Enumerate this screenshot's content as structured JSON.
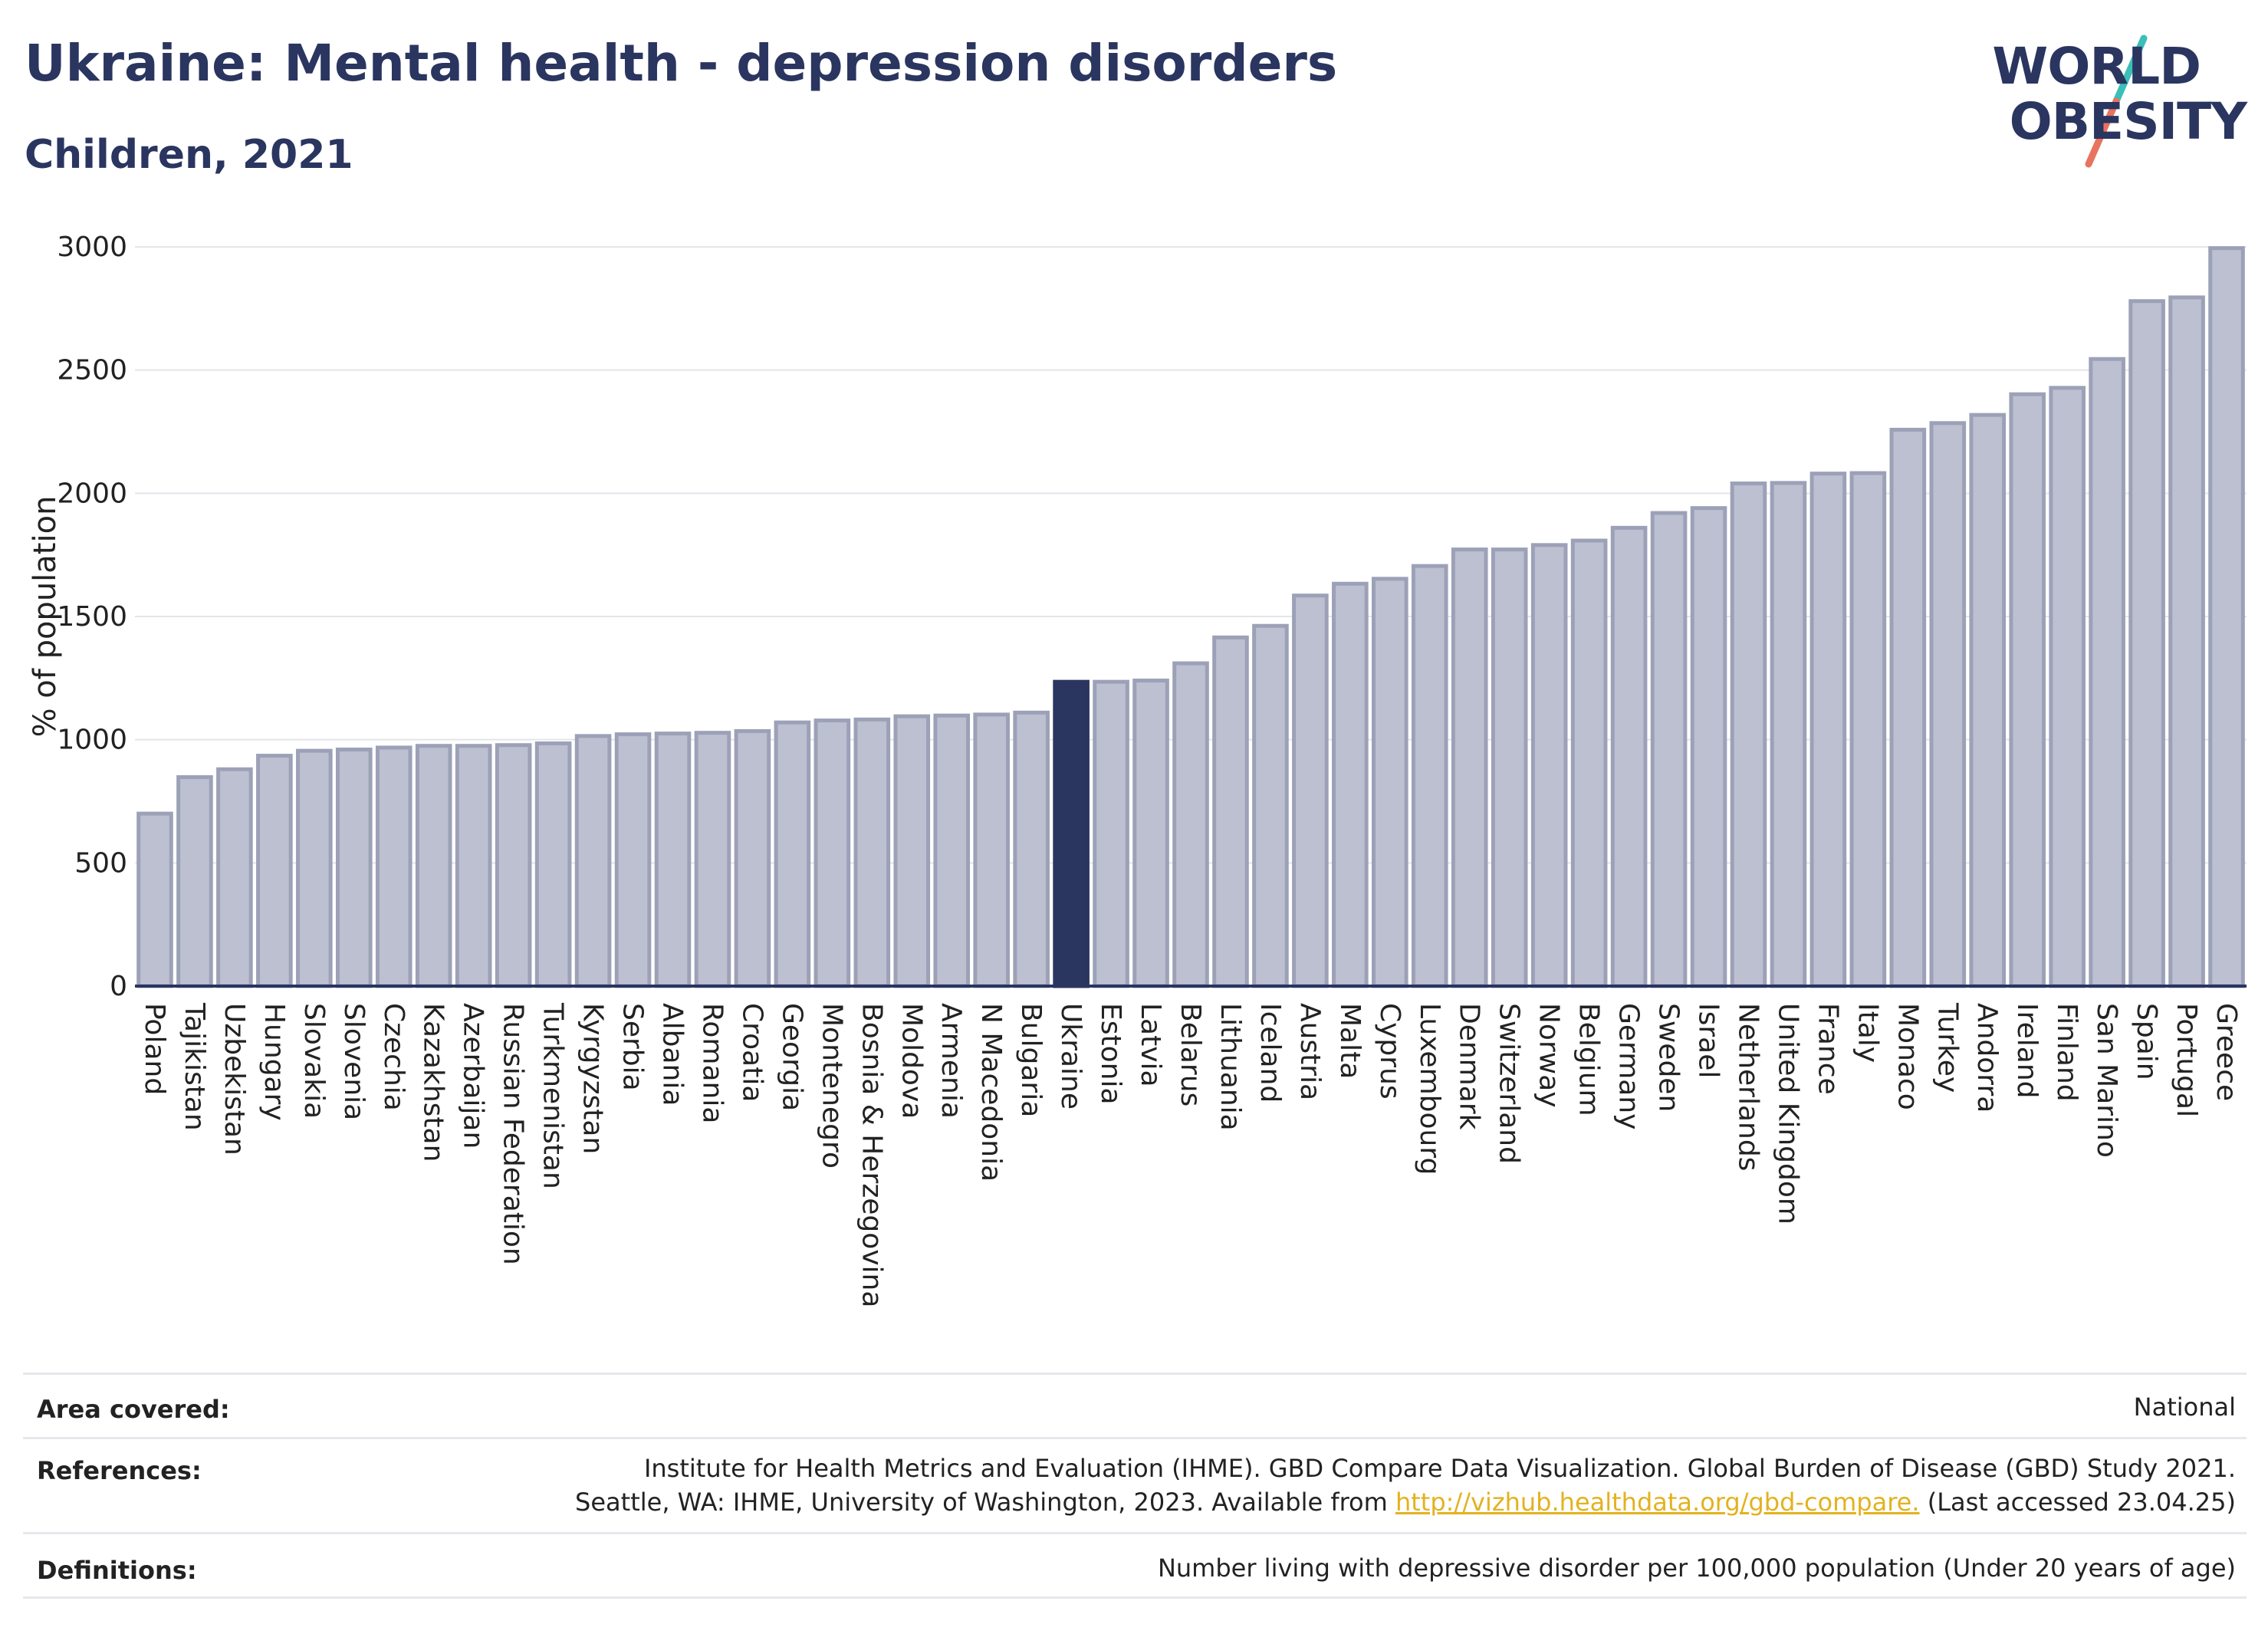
{
  "header": {
    "title": "Ukraine: Mental health - depression disorders",
    "subtitle": "Children, 2021"
  },
  "logo": {
    "line1": "WORLD",
    "line2": "OBESITY",
    "accent_teal": "#3bbfb8",
    "accent_coral": "#e8735f"
  },
  "colors": {
    "bar": "#bcc0d0",
    "bar_border": "#9ca1b8",
    "highlight": "#2a3560",
    "grid": "#e3e5ea",
    "axis": "#2a3560"
  },
  "chart_data": {
    "type": "bar",
    "title": "Ukraine: Mental health - depression disorders",
    "subtitle": "Children, 2021",
    "ylabel": "% of population",
    "xlabel": "",
    "ylim": [
      0,
      3000
    ],
    "yticks": [
      0,
      500,
      1000,
      1500,
      2000,
      2500,
      3000
    ],
    "grid": true,
    "highlight": "Ukraine",
    "categories": [
      "Poland",
      "Tajikistan",
      "Uzbekistan",
      "Hungary",
      "Slovakia",
      "Slovenia",
      "Czechia",
      "Kazakhstan",
      "Azerbaijan",
      "Russian Federation",
      "Turkmenistan",
      "Kyrgyzstan",
      "Serbia",
      "Albania",
      "Romania",
      "Croatia",
      "Georgia",
      "Montenegro",
      "Bosnia & Herzegovina",
      "Moldova",
      "Armenia",
      "N Macedonia",
      "Bulgaria",
      "Ukraine",
      "Estonia",
      "Latvia",
      "Belarus",
      "Lithuania",
      "Iceland",
      "Austria",
      "Malta",
      "Cyprus",
      "Luxembourg",
      "Denmark",
      "Switzerland",
      "Norway",
      "Belgium",
      "Germany",
      "Sweden",
      "Israel",
      "Netherlands",
      "United Kingdom",
      "France",
      "Italy",
      "Monaco",
      "Turkey",
      "Andorra",
      "Ireland",
      "Finland",
      "San Marino",
      "Spain",
      "Portugal",
      "Greece"
    ],
    "values": [
      700,
      848,
      880,
      935,
      955,
      960,
      968,
      975,
      975,
      978,
      985,
      1015,
      1022,
      1025,
      1028,
      1035,
      1070,
      1078,
      1082,
      1095,
      1098,
      1102,
      1110,
      1235,
      1235,
      1240,
      1310,
      1415,
      1462,
      1585,
      1633,
      1653,
      1705,
      1772,
      1772,
      1790,
      1808,
      1860,
      1920,
      1940,
      2040,
      2042,
      2080,
      2082,
      2258,
      2285,
      2318,
      2402,
      2428,
      2545,
      2780,
      2795,
      2995
    ]
  },
  "footer": {
    "area_label": "Area covered:",
    "area_value": "National",
    "references_label": "References:",
    "references_line1": "Institute for Health Metrics and Evaluation (IHME). GBD Compare Data Visualization. Global Burden of Disease (GBD) Study 2021.",
    "references_line2_pre": "Seattle, WA: IHME, University of Washington, 2023. Available from ",
    "references_link": "http://vizhub.healthdata.org/gbd-compare.",
    "references_line2_post": " (Last accessed 23.04.25)",
    "definitions_label": "Definitions:",
    "definitions_value": "Number living with depressive disorder per 100,000 population (Under 20 years of age)"
  }
}
